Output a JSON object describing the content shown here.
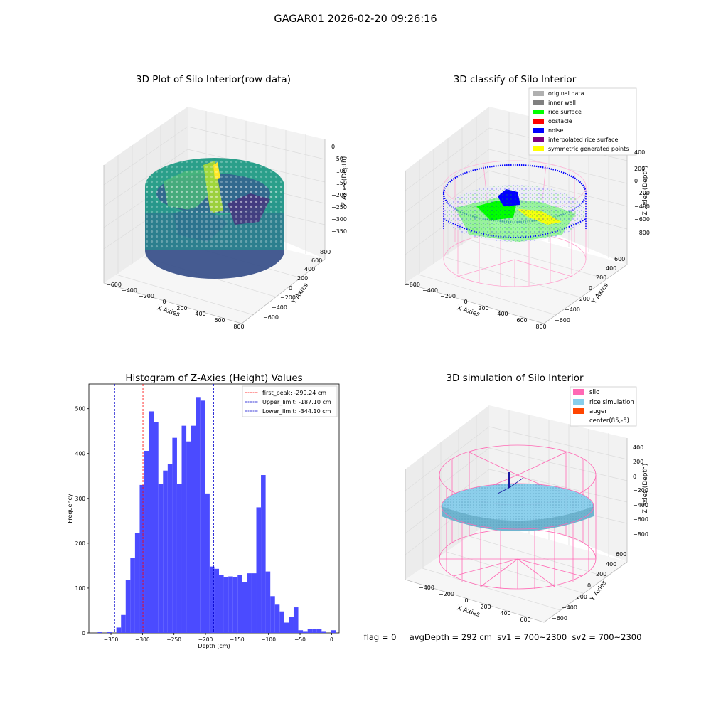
{
  "suptitle": "GAGAR01 2026-02-20 09:26:16",
  "status_line": "flag = 0     avgDepth = 292 cm  sv1 = 700~2300  sv2 = 700~2300",
  "colors": {
    "original": "#b0b0b0",
    "inner_wall": "#808080",
    "rice_surface": "#00ff00",
    "obstacle": "#ff0000",
    "noise": "#0000ff",
    "interpolated": "#800080",
    "symmetric": "#ffff00",
    "silo": "#ff69b4",
    "rice_sim": "#87ceeb",
    "auger": "#ff4500",
    "hist_bar": "#4b4bff"
  },
  "chart_data": [
    {
      "type": "scatter",
      "title": "3D Plot of Silo Interior(row data)",
      "xlabel": "X Axies",
      "ylabel": "Y Axies",
      "zlabel": "Z Axies (Depth)",
      "x_ticks": [
        "−600",
        "−400",
        "−200",
        "0",
        "200",
        "400",
        "600",
        "800"
      ],
      "y_ticks": [
        "−600",
        "−400",
        "−200",
        "0",
        "200",
        "400",
        "600",
        "800"
      ],
      "z_ticks": [
        "0",
        "−50",
        "−100",
        "−150",
        "−200",
        "−250",
        "−300",
        "−350"
      ],
      "xlim": [
        -600,
        800
      ],
      "ylim": [
        -600,
        800
      ],
      "zlim": [
        -380,
        0
      ]
    },
    {
      "type": "scatter",
      "title": "3D classify of Silo Interior",
      "xlabel": "X Axies",
      "ylabel": "Y Axies",
      "zlabel": "Z Axies (Depth)",
      "x_ticks": [
        "−600",
        "−400",
        "−200",
        "0",
        "200",
        "400",
        "600",
        "800"
      ],
      "y_ticks": [
        "−600",
        "−400",
        "−200",
        "0",
        "200",
        "400",
        "600"
      ],
      "z_ticks": [
        "400",
        "200",
        "0",
        "−200",
        "−400",
        "−600",
        "−800"
      ],
      "legend_position": "top-right",
      "legend": [
        {
          "label": "original data",
          "color_key": "original"
        },
        {
          "label": "inner wall",
          "color_key": "inner_wall"
        },
        {
          "label": "rice surface",
          "color_key": "rice_surface"
        },
        {
          "label": "obstacle",
          "color_key": "obstacle"
        },
        {
          "label": "noise",
          "color_key": "noise"
        },
        {
          "label": "interpolated rice surface",
          "color_key": "interpolated"
        },
        {
          "label": "symmetric generated points",
          "color_key": "symmetric"
        }
      ]
    },
    {
      "type": "bar",
      "title": "Histogram of Z-Axies (Height) Values",
      "xlabel": "Depth (cm)",
      "ylabel": "Frequency",
      "xlim": [
        -385,
        12
      ],
      "ylim": [
        0,
        555
      ],
      "x_ticks": [
        -350,
        -300,
        -250,
        -200,
        -150,
        -100,
        -50,
        0
      ],
      "x_tick_labels": [
        "−350",
        "−300",
        "−250",
        "−200",
        "−150",
        "−100",
        "−50",
        "0"
      ],
      "y_ticks": [
        0,
        100,
        200,
        300,
        400,
        500
      ],
      "bin_start": -371,
      "bin_width": 7.4,
      "values": [
        2,
        0,
        2,
        0,
        12,
        40,
        118,
        167,
        222,
        330,
        406,
        494,
        470,
        333,
        362,
        376,
        435,
        332,
        462,
        427,
        462,
        526,
        518,
        311,
        148,
        143,
        130,
        124,
        126,
        124,
        130,
        113,
        133,
        133,
        280,
        352,
        137,
        82,
        63,
        48,
        23,
        35,
        57,
        6,
        4,
        9,
        9,
        8,
        4,
        0,
        6
      ],
      "legend_position": "top-right",
      "vlines": [
        {
          "label": "first_peak: -299.24 cm",
          "x": -299.24,
          "color": "#ff0000"
        },
        {
          "label": "Upper_limit: -187.10 cm",
          "x": -187.1,
          "color": "#0000cc"
        },
        {
          "label": "Lower_limit: -344.10 cm",
          "x": -344.1,
          "color": "#0000cc"
        }
      ]
    },
    {
      "type": "scatter",
      "title": "3D simulation of Silo Interior",
      "xlabel": "X Axies",
      "ylabel": "Y Axies",
      "zlabel": "Z Axies (Depth)",
      "x_ticks": [
        "−400",
        "−200",
        "0",
        "200",
        "400",
        "600"
      ],
      "y_ticks": [
        "−600",
        "−400",
        "−200",
        "0",
        "200",
        "400",
        "600"
      ],
      "z_ticks": [
        "400",
        "200",
        "0",
        "−200",
        "−400",
        "−600",
        "−800"
      ],
      "legend_position": "top-right",
      "legend": [
        {
          "label": "silo",
          "color_key": "silo"
        },
        {
          "label": "rice simulation",
          "color_key": "rice_sim"
        },
        {
          "label": "auger",
          "color_key": "auger"
        },
        {
          "label": "center(85,-5)",
          "color_key": ""
        }
      ]
    }
  ]
}
